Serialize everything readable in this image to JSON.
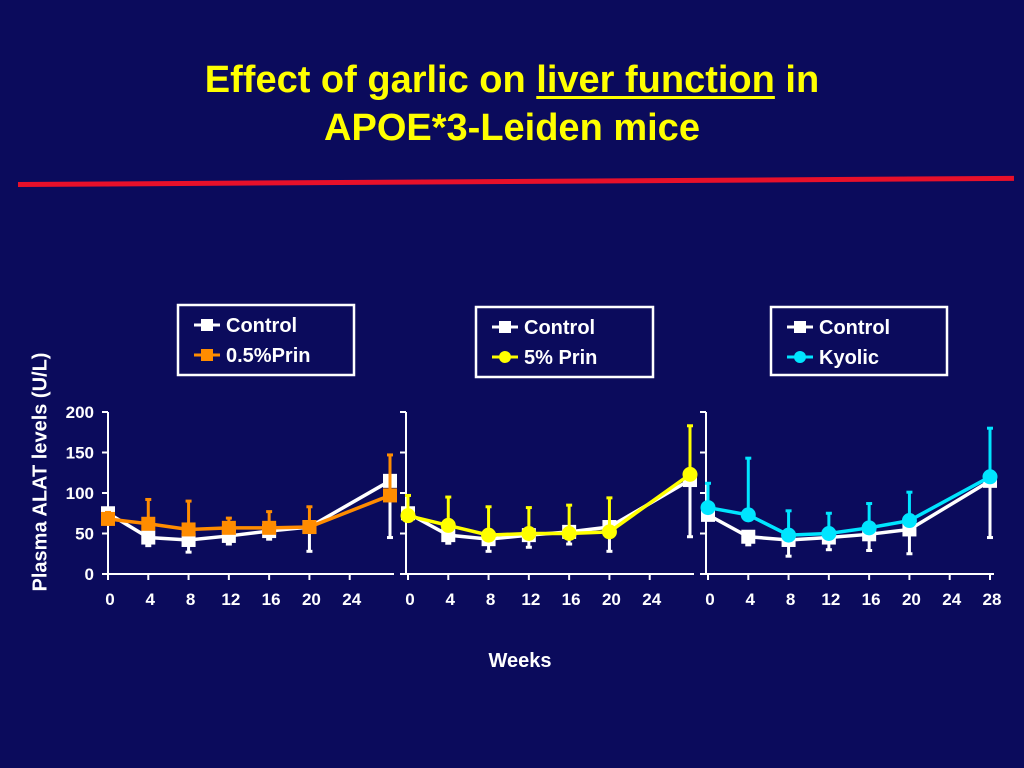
{
  "page": {
    "title_pre": "Effect of garlic on ",
    "title_underlined": "liver function",
    "title_post": " in",
    "title_line2": "APOE*3-Leiden mice"
  },
  "colors": {
    "background": "#0b0b5c",
    "title": "#ffff00",
    "rule": "#e8102a",
    "control": "#ffffff",
    "prin05": "#ff8c00",
    "prin5": "#ffff00",
    "kyolic": "#00e5ff"
  },
  "chart_data": {
    "type": "line",
    "ylabel": "Plasma ALAT levels (U/L)",
    "xlabel": "Weeks",
    "ylim": [
      0,
      200
    ],
    "y_ticks": [
      0,
      50,
      100,
      150,
      200
    ],
    "panels": [
      {
        "x_ticks": [
          "0",
          "4",
          "8",
          "12",
          "16",
          "20",
          "24"
        ],
        "xlim": [
          0,
          28
        ],
        "legend": [
          "Control",
          "0.5%Prin"
        ],
        "series": [
          {
            "name": "Control",
            "color": "#ffffff",
            "marker": "square",
            "x": [
              0,
              4,
              8,
              12,
              16,
              20,
              28
            ],
            "y": [
              75,
              45,
              42,
              47,
              53,
              58,
              115
            ],
            "err": [
              5,
              10,
              15,
              10,
              10,
              30,
              70
            ],
            "err_dir": [
              "up",
              "down",
              "down",
              "down",
              "down",
              "down",
              "down"
            ]
          },
          {
            "name": "0.5%Prin",
            "color": "#ff8c00",
            "marker": "square",
            "x": [
              0,
              4,
              8,
              12,
              16,
              20,
              28
            ],
            "y": [
              68,
              62,
              55,
              57,
              57,
              58,
              97
            ],
            "err": [
              8,
              30,
              35,
              12,
              20,
              25,
              50
            ],
            "err_dir": [
              "up",
              "up",
              "up",
              "up",
              "up",
              "up",
              "up"
            ]
          }
        ]
      },
      {
        "x_ticks": [
          "0",
          "4",
          "8",
          "12",
          "16",
          "20",
          "24"
        ],
        "xlim": [
          0,
          28
        ],
        "legend": [
          "Control",
          "5% Prin"
        ],
        "series": [
          {
            "name": "Control",
            "color": "#ffffff",
            "marker": "square",
            "x": [
              0,
              4,
              8,
              12,
              16,
              20,
              28
            ],
            "y": [
              75,
              48,
              43,
              48,
              52,
              58,
              116
            ],
            "err": [
              5,
              10,
              15,
              15,
              15,
              30,
              70
            ],
            "err_dir": [
              "up",
              "down",
              "down",
              "down",
              "down",
              "down",
              "down"
            ]
          },
          {
            "name": "5% Prin",
            "color": "#ffff00",
            "marker": "circle",
            "x": [
              0,
              4,
              8,
              12,
              16,
              20,
              28
            ],
            "y": [
              72,
              60,
              48,
              50,
              50,
              52,
              123
            ],
            "err": [
              25,
              35,
              35,
              32,
              35,
              42,
              60
            ],
            "err_dir": [
              "up",
              "up",
              "up",
              "up",
              "up",
              "up",
              "up"
            ]
          }
        ]
      },
      {
        "x_ticks": [
          "0",
          "4",
          "8",
          "12",
          "16",
          "20",
          "24",
          "28"
        ],
        "xlim": [
          0,
          28
        ],
        "legend": [
          "Control",
          "Kyolic"
        ],
        "series": [
          {
            "name": "Control",
            "color": "#ffffff",
            "marker": "square",
            "x": [
              0,
              4,
              8,
              12,
              16,
              20,
              28
            ],
            "y": [
              73,
              46,
              42,
              45,
              49,
              55,
              115
            ],
            "err": [
              5,
              10,
              20,
              15,
              20,
              30,
              70
            ],
            "err_dir": [
              "up",
              "down",
              "down",
              "down",
              "down",
              "down",
              "down"
            ]
          },
          {
            "name": "Kyolic",
            "color": "#00e5ff",
            "marker": "circle",
            "x": [
              0,
              4,
              8,
              12,
              16,
              20,
              28
            ],
            "y": [
              82,
              73,
              48,
              50,
              57,
              66,
              120
            ],
            "err": [
              30,
              70,
              30,
              25,
              30,
              35,
              60
            ],
            "err_dir": [
              "up",
              "up",
              "up",
              "up",
              "up",
              "up",
              "up"
            ]
          }
        ]
      }
    ]
  }
}
